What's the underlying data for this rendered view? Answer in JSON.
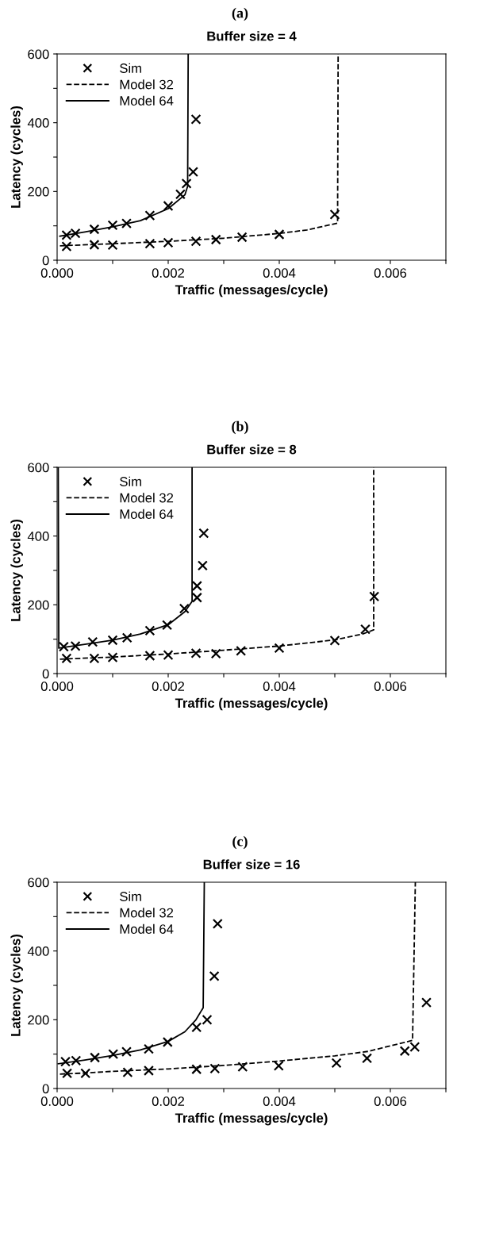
{
  "chart_data": [
    {
      "type": "line",
      "subtitle": "(a)",
      "title": "Buffer size = 4",
      "xlabel": "Traffic (messages/cycle)",
      "ylabel": "Latency (cycles)",
      "xlim": [
        0,
        0.007
      ],
      "xticks": [
        {
          "value": 0,
          "label": "0.000"
        },
        {
          "value": 0.001,
          "label": null
        },
        {
          "value": 0.002,
          "label": "0.002"
        },
        {
          "value": 0.003,
          "label": null
        },
        {
          "value": 0.004,
          "label": "0.004"
        },
        {
          "value": 0.005,
          "label": null
        },
        {
          "value": 0.006,
          "label": "0.006"
        },
        {
          "value": 0.007,
          "label": null
        }
      ],
      "ylim": [
        0,
        600
      ],
      "yticks": [
        0,
        {
          "value": 100,
          "label": null
        },
        200,
        {
          "value": 300,
          "label": null
        },
        400,
        {
          "value": 500,
          "label": null
        },
        600
      ],
      "legend": "top left",
      "grid": false,
      "series": [
        {
          "name": "Sim",
          "type": "scatter",
          "marker": "cross",
          "color": "#000000",
          "x": [
            0.00017,
            0.00033,
            0.00067,
            0.001,
            0.00125,
            0.00167,
            0.002,
            0.00222,
            0.00233,
            0.00245,
            0.0025,
            0.00017,
            0.00067,
            0.001,
            0.00167,
            0.002,
            0.0025,
            0.00286,
            0.00333,
            0.004,
            0.005
          ],
          "values": [
            73,
            78,
            90,
            102,
            107,
            130,
            158,
            192,
            223,
            257,
            410,
            40,
            45,
            44,
            48,
            51,
            55,
            60,
            67,
            75,
            133
          ]
        },
        {
          "name": "Model 32",
          "type": "line",
          "line_style": "dashed",
          "color": "#000000",
          "x": [
            5e-05,
            0.001,
            0.002,
            0.003,
            0.004,
            0.0045,
            0.00505,
            0.00506
          ],
          "values": [
            42,
            48,
            55,
            64,
            78,
            88,
            108,
            600
          ]
        },
        {
          "name": "Model 64",
          "type": "line",
          "line_style": "solid",
          "color": "#000000",
          "x": [
            5e-05,
            0.0005,
            0.001,
            0.0015,
            0.002,
            0.0023,
            0.00235,
            0.00236
          ],
          "values": [
            70,
            82,
            97,
            115,
            150,
            190,
            215,
            600
          ]
        }
      ]
    },
    {
      "type": "line",
      "subtitle": "(b)",
      "title": "Buffer size = 8",
      "xlabel": "Traffic (messages/cycle)",
      "ylabel": "Latency (cycles)",
      "xlim": [
        0,
        0.007
      ],
      "xticks": [
        {
          "value": 0,
          "label": "0.000"
        },
        {
          "value": 0.001,
          "label": null
        },
        {
          "value": 0.002,
          "label": "0.002"
        },
        {
          "value": 0.003,
          "label": null
        },
        {
          "value": 0.004,
          "label": "0.004"
        },
        {
          "value": 0.005,
          "label": null
        },
        {
          "value": 0.006,
          "label": "0.006"
        },
        {
          "value": 0.007,
          "label": null
        }
      ],
      "ylim": [
        0,
        600
      ],
      "yticks": [
        0,
        {
          "value": 100,
          "label": null
        },
        200,
        {
          "value": 300,
          "label": null
        },
        400,
        {
          "value": 500,
          "label": null
        },
        600
      ],
      "legend": "top left",
      "grid": false,
      "series": [
        {
          "name": "Sim",
          "type": "scatter",
          "marker": "cross",
          "color": "#000000",
          "x": [
            0.00012,
            0.00033,
            0.00064,
            0.001,
            0.00126,
            0.00167,
            0.00198,
            0.00229,
            0.00252,
            0.00252,
            0.00262,
            0.00264,
            0.00017,
            0.00067,
            0.001,
            0.00167,
            0.002,
            0.0025,
            0.00286,
            0.00331,
            0.004,
            0.005,
            0.00555,
            0.00571
          ],
          "values": [
            78,
            80,
            92,
            97,
            104,
            125,
            141,
            189,
            221,
            255,
            314,
            408,
            44,
            44,
            47,
            52,
            54,
            59,
            58,
            66,
            74,
            96,
            129,
            224
          ]
        },
        {
          "name": "Model 32",
          "type": "line",
          "line_style": "dashed",
          "color": "#000000",
          "x": [
            5e-05,
            0.001,
            0.002,
            0.003,
            0.004,
            0.005,
            0.0055,
            0.0057,
            0.0057
          ],
          "values": [
            42,
            48,
            57,
            68,
            80,
            98,
            115,
            127,
            600
          ]
        },
        {
          "name": "Model 64",
          "type": "line",
          "line_style": "solid",
          "color": "#000000",
          "x": [
            2e-05,
            3e-05,
            0.0005,
            0.001,
            0.0015,
            0.002,
            0.0023,
            0.00243,
            0.00243
          ],
          "values": [
            600,
            74,
            85,
            97,
            115,
            142,
            180,
            210,
            600
          ]
        }
      ]
    },
    {
      "type": "line",
      "subtitle": "(c)",
      "title": "Buffer size = 16",
      "xlabel": "Traffic (messages/cycle)",
      "ylabel": "Latency (cycles)",
      "xlim": [
        0,
        0.007
      ],
      "xticks": [
        {
          "value": 0,
          "label": "0.000"
        },
        {
          "value": 0.001,
          "label": null
        },
        {
          "value": 0.002,
          "label": "0.002"
        },
        {
          "value": 0.003,
          "label": null
        },
        {
          "value": 0.004,
          "label": "0.004"
        },
        {
          "value": 0.005,
          "label": null
        },
        {
          "value": 0.006,
          "label": "0.006"
        },
        {
          "value": 0.007,
          "label": null
        }
      ],
      "ylim": [
        0,
        600
      ],
      "yticks": [
        0,
        {
          "value": 100,
          "label": null
        },
        200,
        {
          "value": 300,
          "label": null
        },
        400,
        {
          "value": 500,
          "label": null
        },
        600
      ],
      "legend": "top left",
      "grid": false,
      "series": [
        {
          "name": "Sim",
          "type": "scatter",
          "marker": "cross",
          "color": "#000000",
          "x": [
            0.00015,
            0.00034,
            0.00068,
            0.00101,
            0.00125,
            0.00165,
            0.00199,
            0.00251,
            0.0027,
            0.00283,
            0.00289,
            0.00018,
            0.00051,
            0.00127,
            0.00165,
            0.00251,
            0.00284,
            0.00334,
            0.00399,
            0.00503,
            0.00558,
            0.00626,
            0.00644,
            0.00665
          ],
          "values": [
            78,
            81,
            90,
            100,
            107,
            115,
            135,
            178,
            200,
            327,
            479,
            44,
            44,
            47,
            52,
            56,
            58,
            63,
            66,
            74,
            88,
            109,
            121,
            250
          ]
        },
        {
          "name": "Model 32",
          "type": "line",
          "line_style": "dashed",
          "color": "#000000",
          "x": [
            5e-05,
            0.0005,
            0.001,
            0.002,
            0.003,
            0.004,
            0.005,
            0.0056,
            0.0064,
            0.00645
          ],
          "values": [
            42,
            45,
            50,
            57,
            67,
            80,
            95,
            108,
            140,
            600
          ]
        },
        {
          "name": "Model 64",
          "type": "line",
          "line_style": "solid",
          "color": "#000000",
          "x": [
            2e-05,
            0.0005,
            0.001,
            0.0015,
            0.002,
            0.0023,
            0.0025,
            0.00263,
            0.00265
          ],
          "values": [
            72,
            83,
            96,
            112,
            137,
            165,
            200,
            235,
            600
          ]
        }
      ]
    }
  ]
}
